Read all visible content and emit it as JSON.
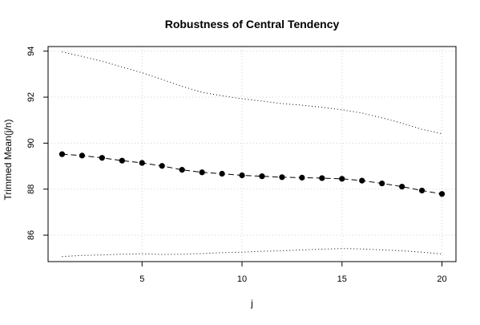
{
  "chart_data": {
    "type": "line",
    "title": "Robustness of Central Tendency",
    "xlabel": "j",
    "ylabel": "Trimmed Mean(j/n)",
    "xlim": [
      0.3,
      20.7
    ],
    "ylim": [
      84.85,
      94.2
    ],
    "xticks": [
      5,
      10,
      15,
      20
    ],
    "yticks": [
      86,
      88,
      90,
      92,
      94
    ],
    "grid": true,
    "x": [
      1,
      2,
      3,
      4,
      5,
      6,
      7,
      8,
      9,
      10,
      11,
      12,
      13,
      14,
      15,
      16,
      17,
      18,
      19,
      20
    ],
    "series": [
      {
        "style": "dashed-with-points",
        "color": "#000000",
        "values": [
          89.52,
          89.46,
          89.36,
          89.24,
          89.14,
          89.01,
          88.84,
          88.73,
          88.67,
          88.6,
          88.56,
          88.52,
          88.5,
          88.48,
          88.45,
          88.37,
          88.25,
          88.11,
          87.94,
          87.79
        ]
      },
      {
        "style": "dotted",
        "color": "#000000",
        "values": [
          93.97,
          93.77,
          93.56,
          93.31,
          93.06,
          92.77,
          92.47,
          92.21,
          92.06,
          91.93,
          91.83,
          91.72,
          91.65,
          91.56,
          91.45,
          91.31,
          91.1,
          90.87,
          90.6,
          90.41
        ]
      },
      {
        "style": "dotted",
        "color": "#000000",
        "values": [
          85.07,
          85.12,
          85.14,
          85.17,
          85.19,
          85.16,
          85.17,
          85.2,
          85.24,
          85.26,
          85.3,
          85.32,
          85.36,
          85.39,
          85.42,
          85.4,
          85.36,
          85.32,
          85.26,
          85.18
        ]
      }
    ]
  }
}
